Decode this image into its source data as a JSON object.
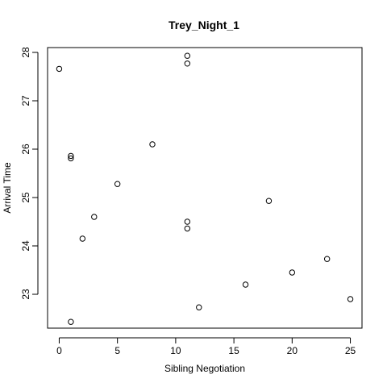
{
  "chart_data": {
    "type": "scatter",
    "title": "Trey_Night_1",
    "xlabel": "Sibling Negotiation",
    "ylabel": "Arrival Time",
    "xlim": [
      -1,
      26
    ],
    "ylim": [
      22.3,
      28.1
    ],
    "x_ticks": [
      0,
      5,
      10,
      15,
      20,
      25
    ],
    "y_ticks": [
      23,
      24,
      25,
      26,
      27,
      28
    ],
    "grid": false,
    "marker": "open-circle",
    "points": [
      {
        "x": 0,
        "y": 27.66
      },
      {
        "x": 1,
        "y": 25.86
      },
      {
        "x": 1,
        "y": 25.81
      },
      {
        "x": 1,
        "y": 22.43
      },
      {
        "x": 2,
        "y": 24.15
      },
      {
        "x": 3,
        "y": 24.6
      },
      {
        "x": 5,
        "y": 25.28
      },
      {
        "x": 8,
        "y": 26.1
      },
      {
        "x": 11,
        "y": 27.93
      },
      {
        "x": 11,
        "y": 27.77
      },
      {
        "x": 11,
        "y": 24.5
      },
      {
        "x": 11,
        "y": 24.36
      },
      {
        "x": 12,
        "y": 22.73
      },
      {
        "x": 16,
        "y": 23.2
      },
      {
        "x": 18,
        "y": 24.93
      },
      {
        "x": 20,
        "y": 23.45
      },
      {
        "x": 23,
        "y": 23.73
      },
      {
        "x": 25,
        "y": 22.9
      }
    ]
  }
}
